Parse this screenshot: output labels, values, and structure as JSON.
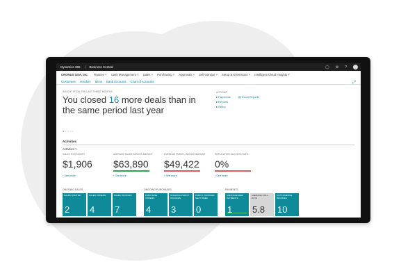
{
  "topbar": {
    "app_name": "Dynamics 365",
    "module": "Business Central",
    "icons": [
      "lightbulb-icon",
      "gear-icon",
      "help-icon",
      "avatar"
    ]
  },
  "nav": {
    "company": "CRONUS USA, Inc.",
    "menus": [
      "Finance ˅",
      "Cash Management ˅",
      "Sales ˅",
      "Purchasing ˅",
      "Approvals ˅",
      "Self-Service ˅",
      "Setup & Extensions ˅",
      "Intelligent Cloud Insights ˅"
    ],
    "links": [
      "Customers",
      "Vendors",
      "Items",
      "Bank Accounts",
      "Chart of Accounts"
    ]
  },
  "insight": {
    "label": "INSIGHT FROM THE LAST THREE MONTHS",
    "pre": "You closed ",
    "number": "16",
    "post": " more deals than in the same period last year"
  },
  "actions": {
    "title": "ACTIONS",
    "left": [
      "▸ Payments",
      "▸ Reports",
      "▸ Setup"
    ],
    "right": [
      "▤ Excel Reports"
    ]
  },
  "activities": {
    "heading": "Activities",
    "sub": "Activities ˅",
    "kpis": [
      {
        "label": "SALES THIS MONTH",
        "value": "$1,906",
        "bar": "",
        "see": "› See more"
      },
      {
        "label": "AVERAGE SALES INVOICE AMOUNT",
        "value": "$63,890",
        "bar": "#2aa84a",
        "see": "› See more"
      },
      {
        "label": "OVERDUE PURCH. INVOICE AMOUNT",
        "value": "$49,422",
        "bar": "#e05a5a",
        "see": "› See more"
      },
      {
        "label": "REPLICATION SUCCESS RATE",
        "value": "0%",
        "bar": "#e05a5a",
        "see": "› See more"
      }
    ]
  },
  "cues": {
    "groups": [
      "ONGOING SALES",
      "ONGOING PURCHASES",
      "PAYMENTS"
    ],
    "tiles": [
      {
        "label": "SALES QUOTES",
        "value": "2"
      },
      {
        "label": "SALES ORDERS",
        "value": "4"
      },
      {
        "label": "SALES INVOICES",
        "value": "7"
      },
      {
        "label": "PURCHASE ORDERS",
        "value": "4"
      },
      {
        "label": "ONGOING PURCH. INVOICES",
        "value": "3"
      },
      {
        "label": "PURCH. INVOICES NEXT WEEK",
        "value": "0"
      },
      {
        "label": "UNPROCESSED PAYMENTS",
        "value": "1"
      },
      {
        "label": "AVERAGE COLL. DAYS",
        "value": "5.8"
      },
      {
        "label": "OUTSTANDING INVOICES",
        "value": "10"
      }
    ]
  }
}
